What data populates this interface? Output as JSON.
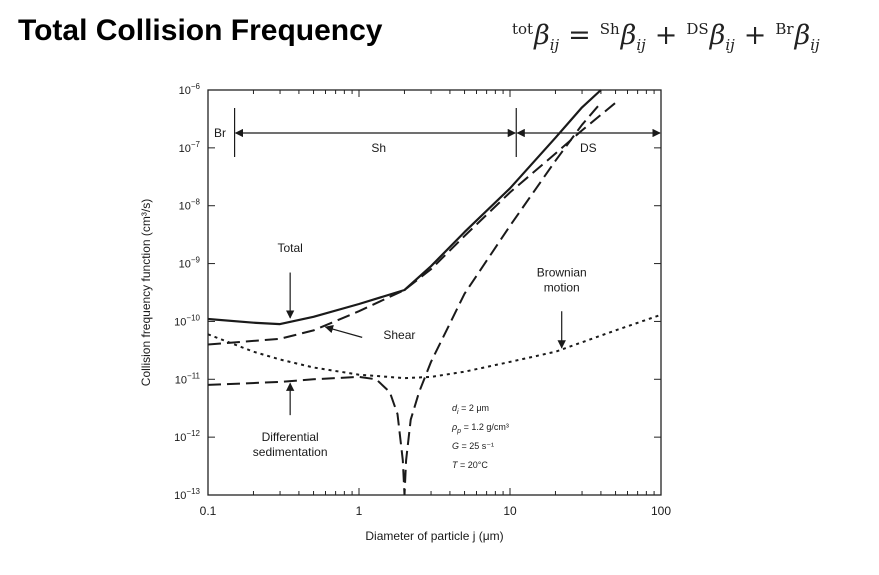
{
  "slide": {
    "title": "Total Collision Frequency",
    "formula": {
      "lhs_sup": "tot",
      "sym": "β",
      "sub": "ij",
      "t1_sup": "Sh",
      "t2_sup": "DS",
      "t3_sup": "Br",
      "eq": "=",
      "plus": "+"
    }
  },
  "chart_data": {
    "type": "line",
    "xscale": "log",
    "yscale": "log",
    "xlim": [
      0.1,
      100
    ],
    "ylim": [
      1e-13,
      1e-06
    ],
    "xlabel": "Diameter of particle j (μm)",
    "ylabel": "Collision frequency function (cm³/s)",
    "x_ticks": [
      0.1,
      1,
      10,
      100
    ],
    "x_tick_labels": [
      "0.1",
      "1",
      "10",
      "100"
    ],
    "y_ticks": [
      1e-13,
      1e-12,
      1e-11,
      1e-10,
      1e-09,
      1e-08,
      1e-07,
      1e-06
    ],
    "y_tick_labels": [
      {
        "base": "10",
        "exp": "−13"
      },
      {
        "base": "10",
        "exp": "−12"
      },
      {
        "base": "10",
        "exp": "−11"
      },
      {
        "base": "10",
        "exp": "−10"
      },
      {
        "base": "10",
        "exp": "−9"
      },
      {
        "base": "10",
        "exp": "−8"
      },
      {
        "base": "10",
        "exp": "−7"
      },
      {
        "base": "10",
        "exp": "−6"
      }
    ],
    "series": [
      {
        "name": "Total",
        "style": "solid",
        "x": [
          0.1,
          0.2,
          0.3,
          0.5,
          1,
          2,
          3,
          5,
          10,
          20,
          30,
          40
        ],
        "y": [
          1.1e-10,
          9.5e-11,
          9e-11,
          1.2e-10,
          2e-10,
          3.5e-10,
          9e-10,
          3.5e-09,
          2e-08,
          1.5e-07,
          5e-07,
          1e-06
        ]
      },
      {
        "name": "Shear",
        "style": "dashed",
        "x": [
          0.1,
          0.3,
          0.5,
          1,
          2,
          3,
          5,
          10,
          20,
          30,
          50
        ],
        "y": [
          4e-11,
          5e-11,
          7e-11,
          1.5e-10,
          3.5e-10,
          8e-10,
          3e-09,
          1.7e-08,
          8e-08,
          2e-07,
          6e-07
        ]
      },
      {
        "name": "Differential sedimentation",
        "style": "dashed",
        "x": [
          0.1,
          0.3,
          0.5,
          1,
          1.3,
          1.6,
          1.8,
          1.95,
          2,
          2.05,
          2.2,
          2.5,
          3,
          5,
          10,
          20,
          30,
          40
        ],
        "y": [
          8e-12,
          9e-12,
          1e-11,
          1.1e-11,
          1e-11,
          6e-12,
          2.5e-12,
          4e-13,
          1e-13,
          4e-13,
          2e-12,
          6e-12,
          2e-11,
          3e-10,
          4.5e-09,
          6e-08,
          2.5e-07,
          6e-07
        ]
      },
      {
        "name": "Brownian motion",
        "style": "dotted",
        "x": [
          0.1,
          0.2,
          0.3,
          0.5,
          1,
          2,
          3,
          5,
          10,
          20,
          50,
          100
        ],
        "y": [
          6e-11,
          3e-11,
          2.2e-11,
          1.6e-11,
          1.2e-11,
          1.05e-11,
          1.1e-11,
          1.35e-11,
          2e-11,
          3e-11,
          7e-11,
          1.3e-10
        ]
      }
    ],
    "regions": [
      {
        "label": "Br",
        "x_from": 0.1,
        "x_to": 0.15
      },
      {
        "label": "Sh",
        "x_from": 0.15,
        "x_to": 11
      },
      {
        "label": "DS",
        "x_from": 11,
        "x_to": 100
      }
    ],
    "annotations": [
      {
        "id": "total",
        "lines": [
          "Total"
        ],
        "text_x": 0.35,
        "text_y": 1.6e-09,
        "arrow_from": [
          0.35,
          7e-10
        ],
        "arrow_to": [
          0.35,
          1.15e-10
        ]
      },
      {
        "id": "shear",
        "lines": [
          "Shear"
        ],
        "text_x": 1.45,
        "text_y": 5e-11,
        "arrow_from": [
          1.05,
          5.3e-11
        ],
        "arrow_to": [
          0.6,
          8e-11
        ]
      },
      {
        "id": "brownian",
        "lines": [
          "Brownian",
          "motion"
        ],
        "text_x": 22,
        "text_y": 6e-10,
        "arrow_from": [
          22,
          1.5e-10
        ],
        "arrow_to": [
          22,
          3.5e-11
        ]
      },
      {
        "id": "diffsed",
        "lines": [
          "Differential",
          "sedimentation"
        ],
        "text_x": 0.35,
        "text_y": 8.5e-13,
        "arrow_from": [
          0.35,
          2.4e-12
        ],
        "arrow_to": [
          0.35,
          8.5e-12
        ]
      }
    ],
    "params": [
      {
        "sym": "d",
        "sub": "i",
        "value": " = 2 μm"
      },
      {
        "sym": "ρ",
        "sub": "p",
        "value": " = 1.2 g/cm³"
      },
      {
        "sym": "G",
        "sub": "",
        "value": " = 25 s⁻¹"
      },
      {
        "sym": "T",
        "sub": "",
        "value": " = 20°C"
      }
    ],
    "colors": {
      "line": "#1a1a1a",
      "axis": "#222222",
      "text": "#1a1a1a"
    }
  }
}
